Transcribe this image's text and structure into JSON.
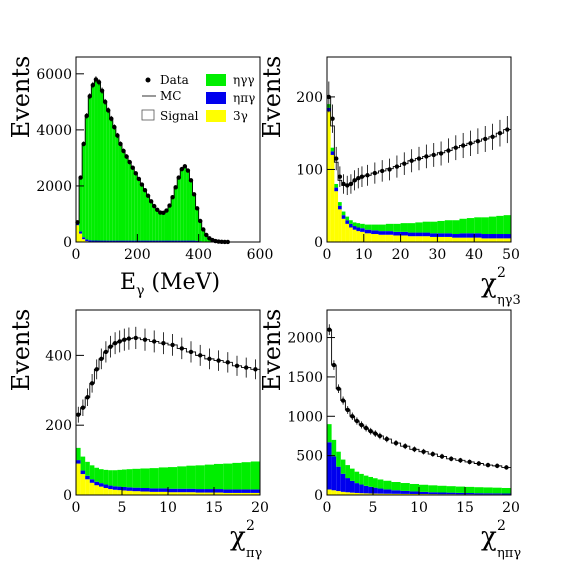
{
  "colors": {
    "eta_gamma_gamma": "#00ee00",
    "eta_pi_gamma": "#0000ee",
    "three_gamma": "#ffff00",
    "mc_line": "#000000",
    "data_marker": "#000000"
  },
  "legend": {
    "data": "Data",
    "mc": "MC",
    "signal": "Signal",
    "eta_gamma_gamma": "ηγγ",
    "eta_pi_gamma": "ηπγ",
    "three_gamma": "3γ"
  },
  "chart_data": [
    {
      "type": "bar",
      "id": "egamma",
      "xlabel_main": "E",
      "xlabel_sub": "γ",
      "xlabel_unit": " (MeV)",
      "ylabel": "Events",
      "xlim": [
        0,
        600
      ],
      "ylim": [
        0,
        6600
      ],
      "xticks": [
        0,
        200,
        400,
        600
      ],
      "yticks": [
        0,
        2000,
        4000,
        6000
      ],
      "x": [
        5,
        15,
        25,
        35,
        45,
        55,
        65,
        75,
        85,
        95,
        105,
        115,
        125,
        135,
        145,
        155,
        165,
        175,
        185,
        195,
        205,
        215,
        225,
        235,
        245,
        255,
        265,
        275,
        285,
        295,
        305,
        315,
        325,
        335,
        345,
        355,
        365,
        375,
        385,
        395,
        405,
        415,
        425,
        435,
        445,
        455,
        465,
        475,
        485,
        495
      ],
      "data": [
        700,
        2300,
        3500,
        4500,
        5200,
        5600,
        5800,
        5700,
        5400,
        5000,
        4700,
        4400,
        4100,
        3800,
        3500,
        3250,
        3050,
        2850,
        2650,
        2450,
        2250,
        2050,
        1850,
        1650,
        1450,
        1280,
        1150,
        1050,
        1040,
        1120,
        1300,
        1600,
        1950,
        2300,
        2600,
        2700,
        2550,
        2200,
        1700,
        1200,
        750,
        450,
        250,
        130,
        70,
        35,
        15,
        8,
        4,
        2
      ],
      "series": [
        {
          "key": "three_gamma",
          "values": [
            600,
            300,
            100,
            30,
            10,
            5,
            3,
            2,
            1,
            1,
            0,
            0,
            0,
            0,
            0,
            0,
            0,
            0,
            0,
            0,
            0,
            0,
            0,
            0,
            0,
            0,
            0,
            0,
            0,
            0,
            0,
            0,
            0,
            0,
            0,
            0,
            0,
            0,
            0,
            0,
            0,
            0,
            0,
            0,
            0,
            0,
            0,
            0,
            0,
            0
          ]
        },
        {
          "key": "eta_pi_gamma",
          "values": [
            60,
            80,
            70,
            60,
            55,
            50,
            50,
            50,
            50,
            50,
            50,
            50,
            50,
            50,
            50,
            50,
            50,
            50,
            50,
            50,
            50,
            50,
            50,
            50,
            50,
            50,
            50,
            50,
            50,
            50,
            50,
            50,
            50,
            50,
            50,
            50,
            50,
            50,
            50,
            40,
            30,
            20,
            10,
            5,
            2,
            1,
            0,
            0,
            0,
            0
          ]
        },
        {
          "key": "eta_gamma_gamma",
          "values": [
            40,
            1920,
            3330,
            4410,
            5135,
            5545,
            5747,
            5648,
            5349,
            4949,
            4650,
            4350,
            4050,
            3750,
            3450,
            3200,
            3000,
            2800,
            2600,
            2400,
            2200,
            2000,
            1800,
            1600,
            1400,
            1230,
            1100,
            1000,
            990,
            1070,
            1250,
            1550,
            1900,
            2250,
            2550,
            2650,
            2500,
            2150,
            1650,
            1160,
            720,
            430,
            240,
            125,
            68,
            34,
            15,
            8,
            4,
            2
          ]
        }
      ],
      "mc": [
        700,
        2300,
        3500,
        4500,
        5200,
        5600,
        5800,
        5700,
        5400,
        5000,
        4700,
        4400,
        4100,
        3800,
        3500,
        3250,
        3050,
        2850,
        2650,
        2450,
        2250,
        2050,
        1850,
        1650,
        1450,
        1280,
        1150,
        1050,
        1040,
        1120,
        1300,
        1600,
        1950,
        2300,
        2600,
        2700,
        2550,
        2200,
        1700,
        1200,
        750,
        450,
        250,
        130,
        70,
        35,
        15,
        8,
        4,
        2
      ]
    },
    {
      "type": "bar",
      "id": "chi2_eta_gamma3",
      "xlabel_main": "χ",
      "xlabel_sup": "2",
      "xlabel_sub": "ηγ3",
      "ylabel": "Events",
      "xlim": [
        0,
        50
      ],
      "ylim": [
        0,
        255
      ],
      "xticks": [
        0,
        10,
        20,
        30,
        40,
        50
      ],
      "yticks": [
        0,
        100,
        200
      ],
      "x": [
        0.5,
        1.5,
        2.5,
        3.5,
        4.5,
        5.5,
        6.5,
        7.5,
        8.5,
        9.5,
        11,
        13,
        15,
        17,
        19,
        21,
        23,
        25,
        27,
        29,
        31,
        33,
        35,
        37,
        39,
        41,
        43,
        45,
        47,
        49
      ],
      "data": [
        200,
        170,
        115,
        90,
        80,
        78,
        80,
        85,
        88,
        90,
        92,
        95,
        98,
        100,
        104,
        108,
        112,
        115,
        118,
        120,
        122,
        126,
        130,
        133,
        136,
        139,
        142,
        145,
        150,
        155
      ],
      "series": [
        {
          "key": "three_gamma",
          "values": [
            180,
            120,
            70,
            45,
            32,
            25,
            20,
            17,
            15,
            14,
            12,
            11,
            10,
            10,
            9,
            9,
            8,
            8,
            8,
            7,
            7,
            7,
            6,
            6,
            6,
            6,
            5,
            5,
            5,
            5
          ]
        },
        {
          "key": "eta_pi_gamma",
          "values": [
            5,
            5,
            5,
            5,
            5,
            5,
            5,
            5,
            5,
            5,
            5,
            5,
            5,
            5,
            5,
            5,
            5,
            5,
            5,
            5,
            5,
            5,
            5,
            6,
            6,
            6,
            6,
            6,
            6,
            6
          ]
        },
        {
          "key": "eta_gamma_gamma",
          "values": [
            5,
            5,
            5,
            5,
            5,
            5,
            5,
            5,
            6,
            6,
            7,
            8,
            9,
            10,
            11,
            12,
            13,
            14,
            15,
            16,
            17,
            18,
            19,
            20,
            21,
            22,
            23,
            24,
            25,
            26
          ]
        }
      ],
      "mc": [
        200,
        160,
        110,
        85,
        78,
        78,
        80,
        84,
        87,
        90,
        92,
        95,
        98,
        101,
        104,
        108,
        112,
        115,
        118,
        120,
        123,
        126,
        130,
        133,
        136,
        139,
        142,
        145,
        150,
        155
      ]
    },
    {
      "type": "bar",
      "id": "chi2_pi_gamma",
      "xlabel_main": "χ",
      "xlabel_sup": "2",
      "xlabel_sub": "πγ",
      "ylabel": "Events",
      "xlim": [
        0,
        20
      ],
      "ylim": [
        0,
        530
      ],
      "xticks": [
        0,
        5,
        10,
        15,
        20
      ],
      "yticks": [
        0,
        200,
        400
      ],
      "x": [
        0.25,
        0.75,
        1.25,
        1.75,
        2.25,
        2.75,
        3.25,
        3.75,
        4.25,
        4.75,
        5.25,
        5.75,
        6.5,
        7.5,
        8.5,
        9.5,
        10.5,
        11.5,
        12.5,
        13.5,
        14.5,
        15.5,
        16.5,
        17.5,
        18.5,
        19.5
      ],
      "data": [
        230,
        250,
        280,
        320,
        360,
        390,
        410,
        425,
        435,
        440,
        445,
        448,
        450,
        445,
        440,
        435,
        430,
        420,
        410,
        400,
        390,
        385,
        380,
        370,
        365,
        360
      ],
      "series": [
        {
          "key": "three_gamma",
          "values": [
            90,
            60,
            45,
            35,
            28,
            24,
            20,
            17,
            15,
            14,
            13,
            12,
            11,
            10,
            9,
            9,
            8,
            8,
            8,
            7,
            7,
            7,
            6,
            6,
            6,
            6
          ]
        },
        {
          "key": "eta_pi_gamma",
          "values": [
            10,
            10,
            10,
            10,
            10,
            10,
            10,
            10,
            10,
            10,
            10,
            10,
            10,
            10,
            10,
            10,
            10,
            10,
            10,
            10,
            10,
            10,
            10,
            10,
            10,
            10
          ]
        },
        {
          "key": "eta_gamma_gamma",
          "values": [
            35,
            40,
            40,
            40,
            40,
            40,
            42,
            44,
            46,
            48,
            50,
            52,
            54,
            56,
            58,
            60,
            62,
            64,
            66,
            68,
            70,
            72,
            74,
            76,
            78,
            80
          ]
        }
      ],
      "mc": [
        230,
        250,
        280,
        320,
        360,
        390,
        410,
        425,
        435,
        440,
        445,
        448,
        450,
        445,
        440,
        435,
        430,
        420,
        410,
        400,
        390,
        385,
        380,
        370,
        365,
        360
      ]
    },
    {
      "type": "bar",
      "id": "chi2_eta_pi_gamma",
      "xlabel_main": "χ",
      "xlabel_sup": "2",
      "xlabel_sub": "ηπγ",
      "ylabel": "Events",
      "xlim": [
        0,
        20
      ],
      "ylim": [
        0,
        2350
      ],
      "xticks": [
        0,
        5,
        10,
        15,
        20
      ],
      "yticks": [
        0,
        500,
        1000,
        1500,
        2000
      ],
      "x": [
        0.25,
        0.75,
        1.25,
        1.75,
        2.25,
        2.75,
        3.25,
        3.75,
        4.25,
        4.75,
        5.25,
        5.75,
        6.5,
        7.5,
        8.5,
        9.5,
        10.5,
        11.5,
        12.5,
        13.5,
        14.5,
        15.5,
        16.5,
        17.5,
        18.5,
        19.5
      ],
      "data": [
        2100,
        1650,
        1350,
        1200,
        1080,
        1000,
        940,
        890,
        850,
        810,
        780,
        750,
        710,
        660,
        620,
        580,
        550,
        520,
        490,
        460,
        440,
        420,
        400,
        380,
        370,
        350
      ],
      "series": [
        {
          "key": "three_gamma",
          "values": [
            70,
            60,
            50,
            40,
            35,
            30,
            26,
            23,
            21,
            19,
            18,
            17,
            16,
            15,
            14,
            13,
            12,
            11,
            10,
            10,
            9,
            9,
            8,
            8,
            8,
            7
          ]
        },
        {
          "key": "eta_pi_gamma",
          "values": [
            600,
            430,
            310,
            230,
            180,
            150,
            125,
            110,
            95,
            85,
            75,
            65,
            55,
            45,
            38,
            32,
            28,
            24,
            22,
            20,
            18,
            16,
            15,
            14,
            13,
            12
          ]
        },
        {
          "key": "eta_gamma_gamma",
          "values": [
            230,
            210,
            190,
            180,
            165,
            155,
            145,
            135,
            130,
            125,
            120,
            115,
            110,
            105,
            100,
            95,
            90,
            88,
            85,
            82,
            80,
            78,
            76,
            74,
            72,
            70
          ]
        }
      ],
      "mc": [
        2100,
        1650,
        1350,
        1200,
        1080,
        1000,
        940,
        890,
        850,
        810,
        780,
        750,
        710,
        660,
        620,
        580,
        550,
        520,
        490,
        460,
        440,
        420,
        400,
        380,
        370,
        350
      ]
    }
  ]
}
